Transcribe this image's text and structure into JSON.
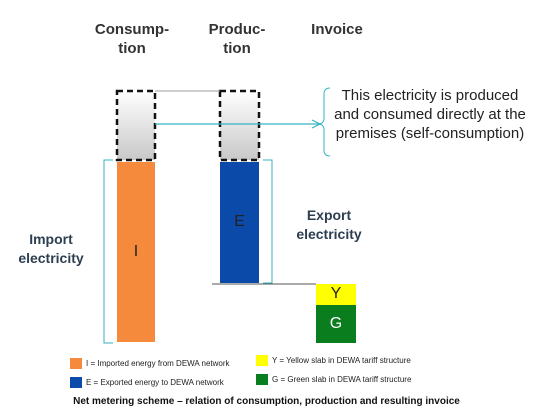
{
  "headers": {
    "consumption": "Consump-\ntion",
    "production": "Produc-\ntion",
    "invoice": "Invoice"
  },
  "callout": "This electricity is produced and consumed directly at the premises (self-consumption)",
  "labels": {
    "import": "Import\nelectricity",
    "export": "Export\nelectricity"
  },
  "bars": {
    "import_letter": "I",
    "export_letter": "E",
    "yellow_letter": "Y",
    "green_letter": "G"
  },
  "legend": [
    {
      "color": "#f58a3c",
      "text": "I = Imported energy from DEWA network"
    },
    {
      "color": "#0b4aa8",
      "text": "E = Exported energy to DEWA network"
    },
    {
      "color": "#ffff00",
      "text": "Y = Yellow slab in DEWA tariff structure"
    },
    {
      "color": "#0a7d1e",
      "text": "G = Green slab in DEWA tariff structure"
    }
  ],
  "caption": "Net metering scheme – relation of consumption, production and resulting invoice",
  "colors": {
    "import": "#f58a3c",
    "export": "#0b4aa8",
    "yellow": "#ffff00",
    "green": "#0a7d1e",
    "arrow": "#37b3c3"
  }
}
